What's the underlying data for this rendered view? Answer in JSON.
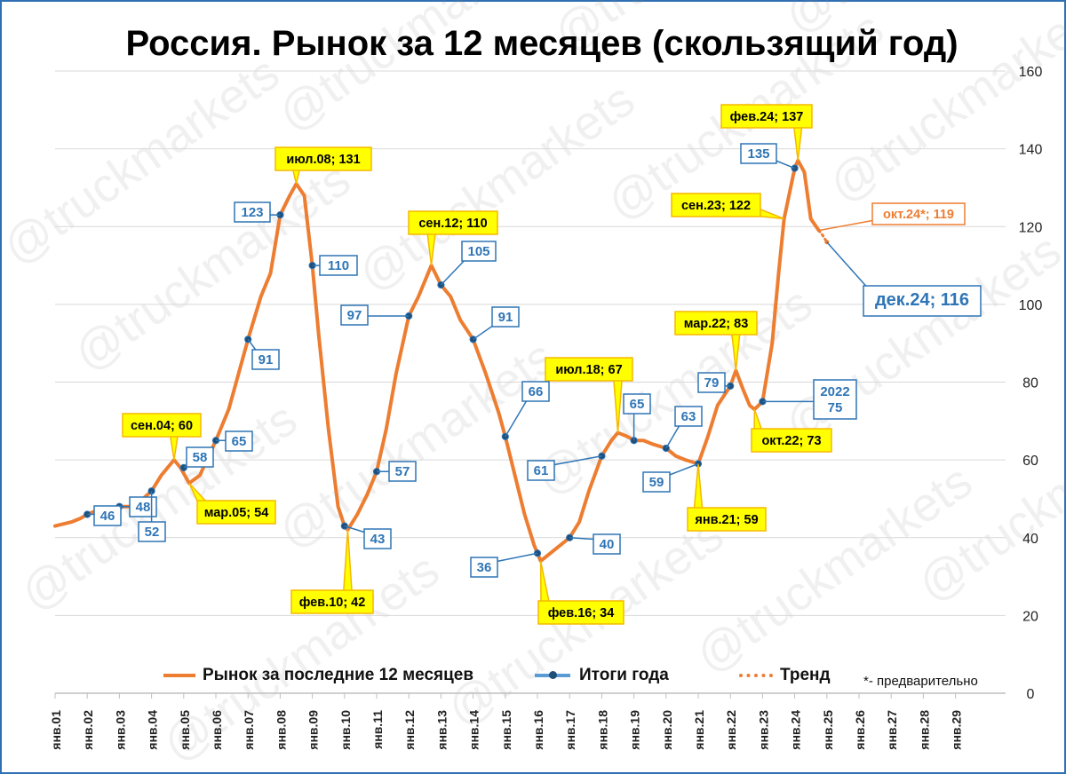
{
  "chart_data": {
    "type": "line",
    "title": "Россия. Рынок за 12 месяцев (скользящий год)",
    "ylim": [
      0,
      160
    ],
    "yticks": [
      "0",
      "20",
      "40",
      "60",
      "80",
      "100",
      "120",
      "140",
      "160"
    ],
    "x_categories": [
      "янв.01",
      "янв.02",
      "янв.03",
      "янв.04",
      "янв.05",
      "янв.06",
      "янв.07",
      "янв.08",
      "янв.09",
      "янв.10",
      "янв.11",
      "янв.12",
      "янв.13",
      "янв.14",
      "янв.15",
      "янв.16",
      "янв.17",
      "янв.18",
      "янв.19",
      "янв.20",
      "янв.21",
      "янв.22",
      "янв.23",
      "янв.24",
      "янв.25",
      "янв.26",
      "янв.27",
      "янв.28",
      "янв.29"
    ],
    "grid": true,
    "legend_position": "bottom",
    "series": [
      {
        "name": "Рынок за последние 12 месяцев",
        "color": "#ed7d31",
        "points": [
          [
            2001.0,
            43
          ],
          [
            2001.5,
            44
          ],
          [
            2001.8,
            45
          ],
          [
            2002.0,
            46
          ],
          [
            2002.3,
            47
          ],
          [
            2002.6,
            47
          ],
          [
            2003.0,
            48
          ],
          [
            2003.3,
            48
          ],
          [
            2003.6,
            49
          ],
          [
            2004.0,
            52
          ],
          [
            2004.3,
            56
          ],
          [
            2004.5,
            58
          ],
          [
            2004.7,
            60
          ],
          [
            2004.9,
            58
          ],
          [
            2005.17,
            54
          ],
          [
            2005.5,
            56
          ],
          [
            2006.0,
            65
          ],
          [
            2006.4,
            73
          ],
          [
            2006.7,
            82
          ],
          [
            2007.0,
            91
          ],
          [
            2007.4,
            102
          ],
          [
            2007.7,
            108
          ],
          [
            2008.0,
            123
          ],
          [
            2008.3,
            128
          ],
          [
            2008.5,
            131
          ],
          [
            2008.75,
            128
          ],
          [
            2009.0,
            110
          ],
          [
            2009.2,
            92
          ],
          [
            2009.5,
            68
          ],
          [
            2009.8,
            48
          ],
          [
            2010.0,
            43
          ],
          [
            2010.1,
            42
          ],
          [
            2010.4,
            46
          ],
          [
            2010.7,
            51
          ],
          [
            2011.0,
            57
          ],
          [
            2011.3,
            68
          ],
          [
            2011.6,
            82
          ],
          [
            2012.0,
            97
          ],
          [
            2012.3,
            102
          ],
          [
            2012.5,
            106
          ],
          [
            2012.7,
            110
          ],
          [
            2013.0,
            105
          ],
          [
            2013.3,
            102
          ],
          [
            2013.6,
            96
          ],
          [
            2014.0,
            91
          ],
          [
            2014.4,
            82
          ],
          [
            2014.8,
            72
          ],
          [
            2015.0,
            66
          ],
          [
            2015.3,
            56
          ],
          [
            2015.6,
            46
          ],
          [
            2015.9,
            38
          ],
          [
            2016.0,
            36
          ],
          [
            2016.1,
            34
          ],
          [
            2016.4,
            36
          ],
          [
            2016.7,
            38
          ],
          [
            2017.0,
            40
          ],
          [
            2017.3,
            44
          ],
          [
            2017.6,
            52
          ],
          [
            2018.0,
            61
          ],
          [
            2018.3,
            65
          ],
          [
            2018.5,
            67
          ],
          [
            2018.8,
            66
          ],
          [
            2019.0,
            65
          ],
          [
            2019.3,
            65
          ],
          [
            2019.6,
            64
          ],
          [
            2020.0,
            63
          ],
          [
            2020.3,
            61
          ],
          [
            2020.6,
            60
          ],
          [
            2021.0,
            59
          ],
          [
            2021.3,
            66
          ],
          [
            2021.6,
            74
          ],
          [
            2022.0,
            79
          ],
          [
            2022.17,
            83
          ],
          [
            2022.4,
            78
          ],
          [
            2022.6,
            74
          ],
          [
            2022.75,
            73
          ],
          [
            2023.0,
            75
          ],
          [
            2023.3,
            90
          ],
          [
            2023.5,
            108
          ],
          [
            2023.67,
            122
          ],
          [
            2024.0,
            135
          ],
          [
            2024.1,
            137
          ],
          [
            2024.3,
            134
          ],
          [
            2024.5,
            122
          ],
          [
            2024.75,
            119
          ]
        ]
      },
      {
        "name": "Итоги года",
        "color": "#2e75b6",
        "points": [
          [
            2002,
            46
          ],
          [
            2003,
            48
          ],
          [
            2004,
            52
          ],
          [
            2005,
            58
          ],
          [
            2006,
            65
          ],
          [
            2007,
            91
          ],
          [
            2008,
            123
          ],
          [
            2009,
            110
          ],
          [
            2010,
            43
          ],
          [
            2011,
            57
          ],
          [
            2012,
            97
          ],
          [
            2013,
            105
          ],
          [
            2014,
            91
          ],
          [
            2015,
            66
          ],
          [
            2016,
            36
          ],
          [
            2017,
            40
          ],
          [
            2018,
            61
          ],
          [
            2019,
            65
          ],
          [
            2020,
            63
          ],
          [
            2021,
            59
          ],
          [
            2022,
            79
          ],
          [
            2023,
            75
          ],
          [
            2024,
            135
          ]
        ]
      },
      {
        "name": "Тренд",
        "color": "#ed7d31",
        "points": [
          [
            2024.75,
            119
          ],
          [
            2024.85,
            118
          ],
          [
            2025.0,
            116
          ]
        ]
      }
    ],
    "callouts_extreme": [
      {
        "text": "сен.04; 60"
      },
      {
        "text": "мар.05; 54"
      },
      {
        "text": "июл.08; 131"
      },
      {
        "text": "фев.10; 42"
      },
      {
        "text": "сен.12; 110"
      },
      {
        "text": "фев.16; 34"
      },
      {
        "text": "июл.18; 67"
      },
      {
        "text": "янв.21; 59"
      },
      {
        "text": "мар.22; 83"
      },
      {
        "text": "окт.22; 73"
      },
      {
        "text": "сен.23; 122"
      },
      {
        "text": "фев.24; 137"
      }
    ],
    "callouts_year": [
      "46",
      "48",
      "52",
      "58",
      "65",
      "91",
      "123",
      "110",
      "43",
      "57",
      "97",
      "105",
      "91",
      "66",
      "36",
      "40",
      "61",
      "65",
      "63",
      "59",
      "79",
      "2022\n75",
      "135"
    ],
    "callout_prelim": "окт.24*; 119",
    "callout_trend": "дек.24; 116",
    "legend_items": [
      "Рынок за последние 12 месяцев",
      "Итоги года",
      "Тренд"
    ],
    "note": "*- предварительно",
    "watermark": "@truckmarkets"
  },
  "colors": {
    "orange": "#ed7d31",
    "blue": "#2e75b6",
    "callout_fill": "#ffff00",
    "callout_border": "#f5b800",
    "grid": "#d9d9d9",
    "frame": "#2f6fb3"
  }
}
